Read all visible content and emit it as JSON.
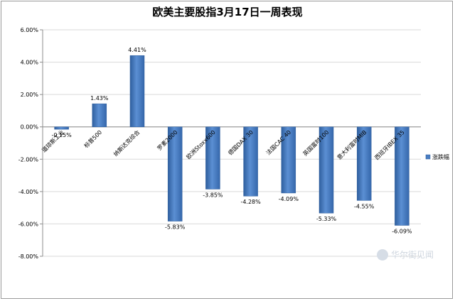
{
  "chart_data": {
    "type": "bar",
    "title": "欧美主要股指3月17日一周表现",
    "categories": [
      "道琼斯工业",
      "标普500",
      "纳斯达克综合",
      "罗素2000",
      "欧洲Stoxx600",
      "德国DAX 30",
      "法国CAC 40",
      "英国富时100",
      "意大利富时MIB",
      "西班牙IBEX 35"
    ],
    "series": [
      {
        "name": "涨跌幅",
        "values": [
          -0.15,
          1.43,
          4.41,
          -5.83,
          -3.85,
          -4.28,
          -4.09,
          -5.33,
          -4.55,
          -6.09
        ],
        "value_labels": [
          "-0.15%",
          "1.43%",
          "4.41%",
          "-5.83%",
          "-3.85%",
          "-4.28%",
          "-4.09%",
          "-5.33%",
          "-4.55%",
          "-6.09%"
        ]
      }
    ],
    "ylim": [
      -8,
      6
    ],
    "yticks": [
      6,
      4,
      2,
      0,
      -2,
      -4,
      -6,
      -8
    ],
    "ytick_labels": [
      "6.00%",
      "4.00%",
      "2.00%",
      "0.00%",
      "-2.00%",
      "-4.00%",
      "-6.00%",
      "-8.00%"
    ],
    "grid": true,
    "legend_position": "right",
    "colors": {
      "bar": "#4a7ec2",
      "bar_dark": "#2f5f9e",
      "grid": "#d9d9d9",
      "axis": "#8c8c8c"
    }
  },
  "watermark": "华尔街见闻"
}
